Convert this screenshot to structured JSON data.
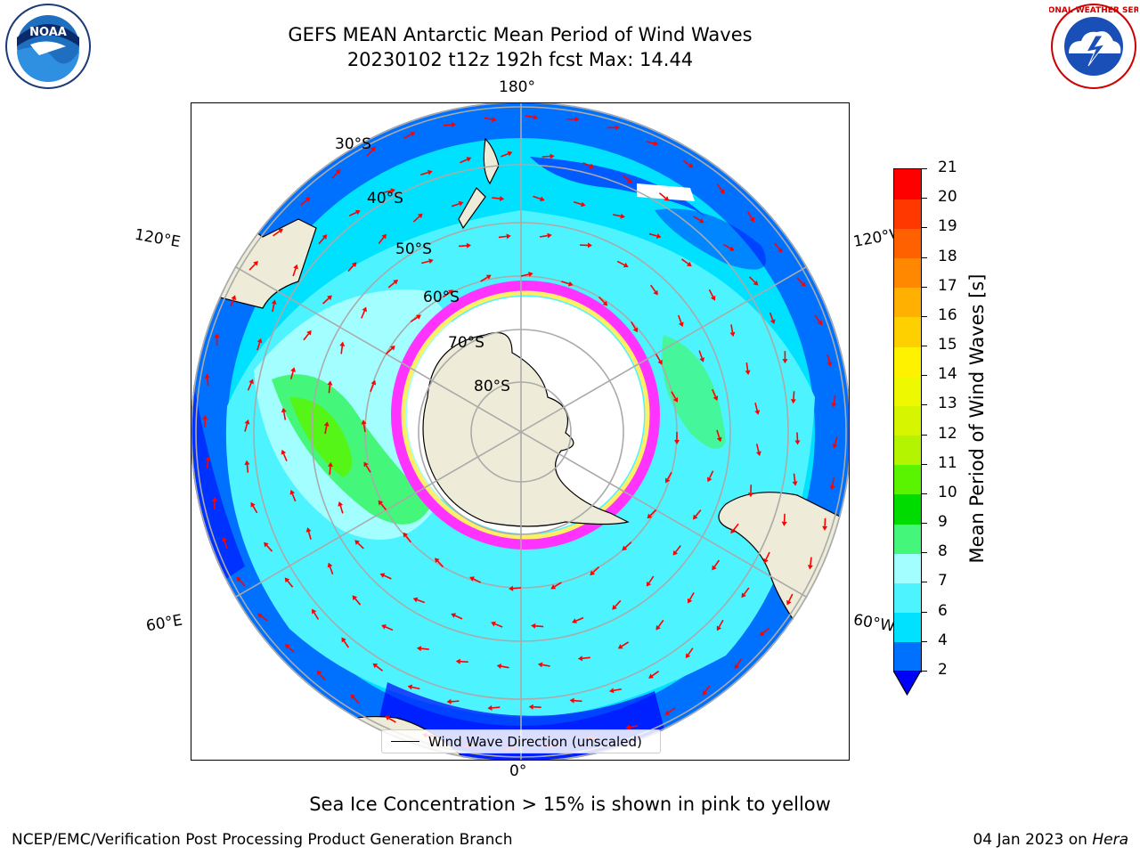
{
  "header": {
    "title_line1": "GEFS MEAN Antarctic Mean Period of Wind Waves",
    "title_line2": "20230102 t12z 192h fcst   Max: 14.44"
  },
  "logos": {
    "left": "noaa-logo",
    "left_text": "NOAA",
    "right": "national-weather-service-logo",
    "right_text": "NATIONAL WEATHER SERVICE"
  },
  "map": {
    "projection": "south-polar-stereographic",
    "longitude_labels": {
      "top": "180°",
      "bottom": "0°",
      "upper_left": "120°E",
      "upper_right": "120°W",
      "lower_left": "60°E",
      "lower_right": "60°W"
    },
    "latitude_labels": [
      "30°S",
      "40°S",
      "50°S",
      "60°S",
      "70°S",
      "80°S"
    ],
    "legend": "Wind Wave Direction (unscaled)",
    "colors": {
      "land": "#eeecd8",
      "ice_pink": "#ff33ff",
      "ice_yellow": "#ffee66",
      "arrow": "#ff0000",
      "gridline": "#aaaaaa"
    }
  },
  "colorbar": {
    "label": "Mean Period of Wind Waves [s]",
    "ticks": [
      "2",
      "4",
      "6",
      "7",
      "8",
      "9",
      "10",
      "11",
      "12",
      "13",
      "14",
      "15",
      "16",
      "17",
      "18",
      "19",
      "20",
      "21"
    ],
    "colors": [
      "#0070ff",
      "#00e1ff",
      "#4df3ff",
      "#a3ffff",
      "#44f77a",
      "#00dc00",
      "#5af400",
      "#b4f400",
      "#d6f500",
      "#eef800",
      "#fff200",
      "#ffd000",
      "#ffb000",
      "#ff8800",
      "#ff6000",
      "#ff3800",
      "#ff0000"
    ],
    "extend_min_color": "#0000ff"
  },
  "footer": {
    "note": "Sea Ice Concentration > 15% is shown in pink to yellow",
    "credit": "NCEP/EMC/Verification Post Processing Product Generation Branch",
    "date": "04 Jan 2023 on ",
    "machine": "Hera"
  }
}
